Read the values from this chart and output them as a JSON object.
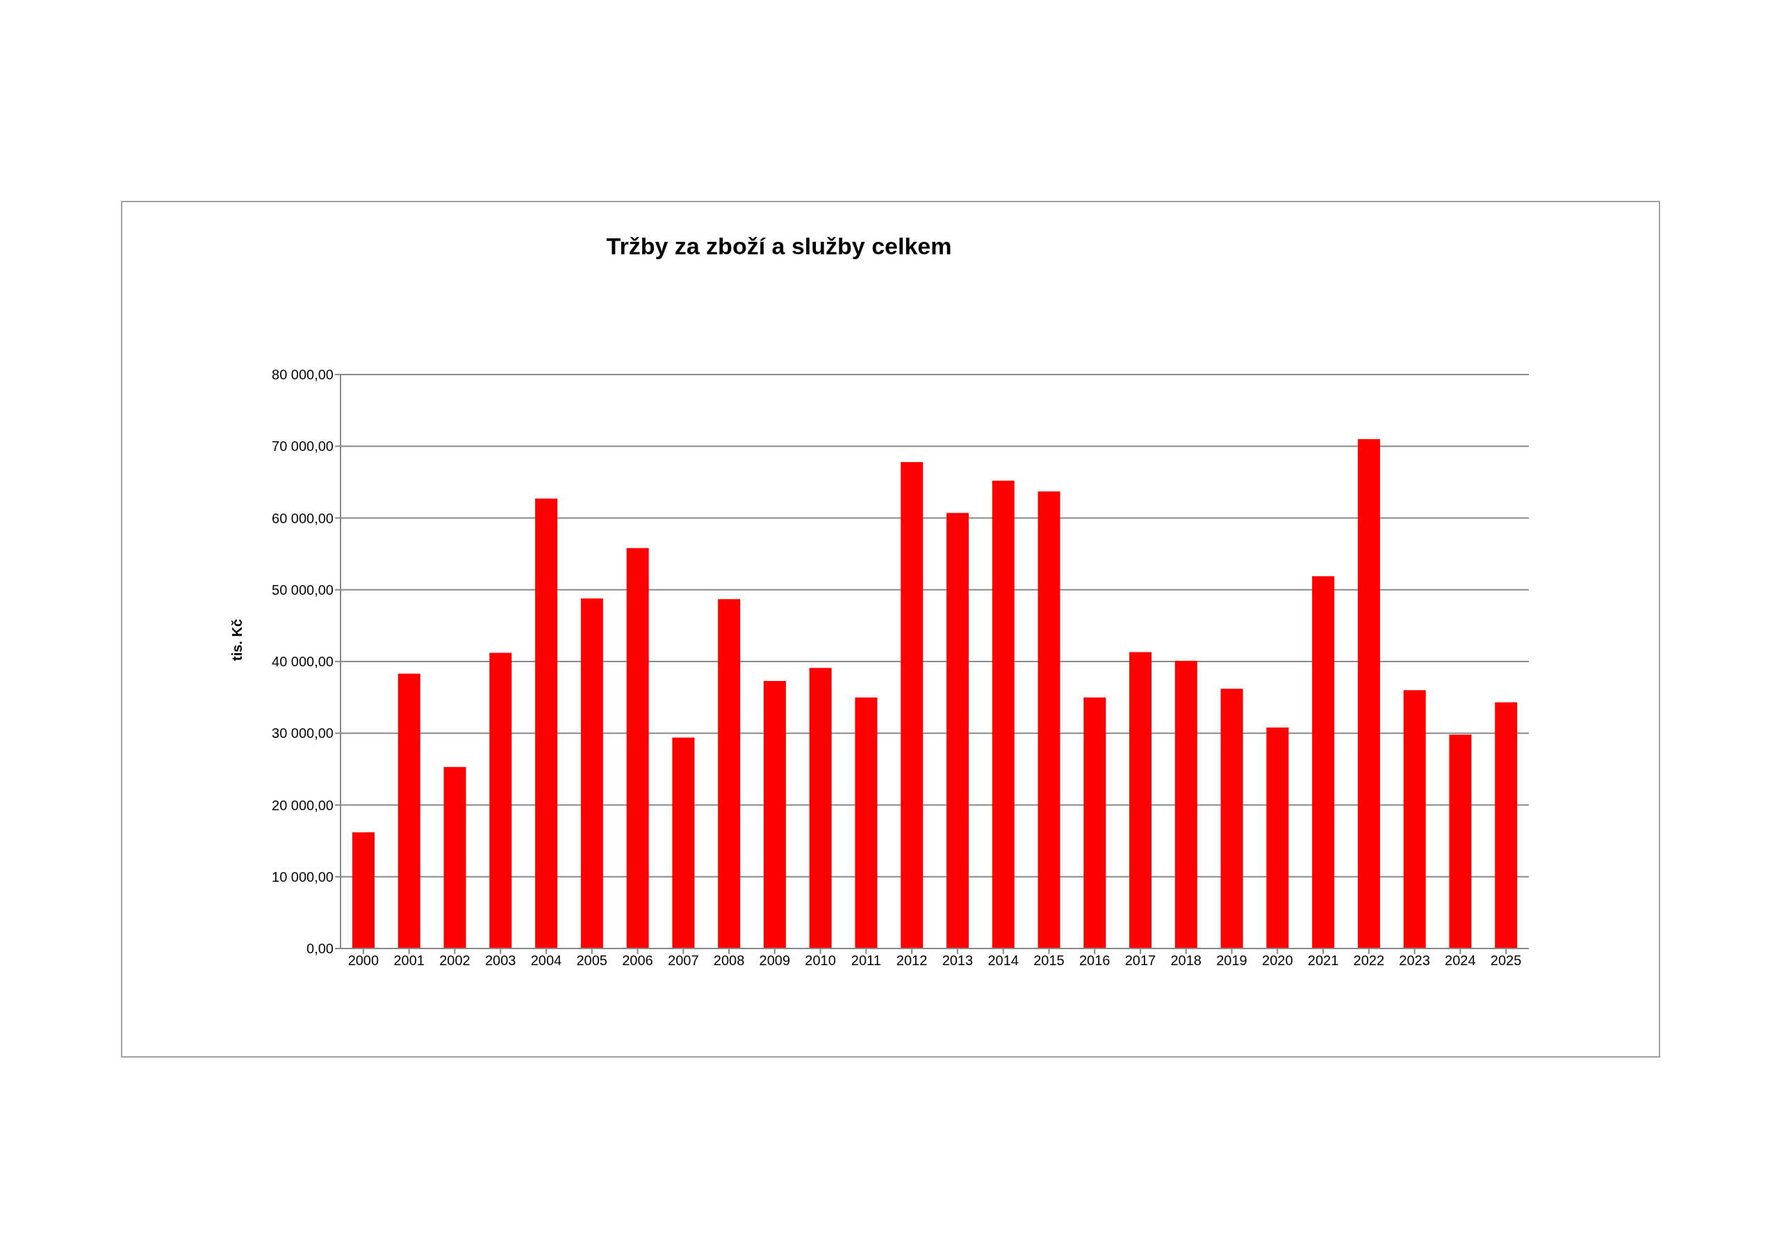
{
  "chart_data": {
    "type": "bar",
    "title": "Tržby za zboží a služby celkem",
    "ylabel": "tis. Kč",
    "categories": [
      "2000",
      "2001",
      "2002",
      "2003",
      "2004",
      "2005",
      "2006",
      "2007",
      "2008",
      "2009",
      "2010",
      "2011",
      "2012",
      "2013",
      "2014",
      "2015",
      "2016",
      "2017",
      "2018",
      "2019",
      "2020",
      "2021",
      "2022",
      "2023",
      "2024",
      "2025"
    ],
    "values": [
      16200,
      38300,
      25300,
      41200,
      62700,
      48800,
      55800,
      29400,
      48700,
      37300,
      39100,
      35000,
      67800,
      60700,
      65200,
      63700,
      35000,
      41300,
      40100,
      36200,
      30800,
      51900,
      71000,
      36000,
      29800,
      34300
    ],
    "color": "#ff0000",
    "ylim": [
      0,
      80000
    ],
    "yticks": [
      {
        "value": 0,
        "label": "0,00"
      },
      {
        "value": 10000,
        "label": "10 000,00"
      },
      {
        "value": 20000,
        "label": "20 000,00"
      },
      {
        "value": 30000,
        "label": "30 000,00"
      },
      {
        "value": 40000,
        "label": "40 000,00"
      },
      {
        "value": 50000,
        "label": "50 000,00"
      },
      {
        "value": 60000,
        "label": "60 000,00"
      },
      {
        "value": 70000,
        "label": "70 000,00"
      },
      {
        "value": 80000,
        "label": "80 000,00"
      }
    ],
    "grid": "y",
    "legend": false
  }
}
